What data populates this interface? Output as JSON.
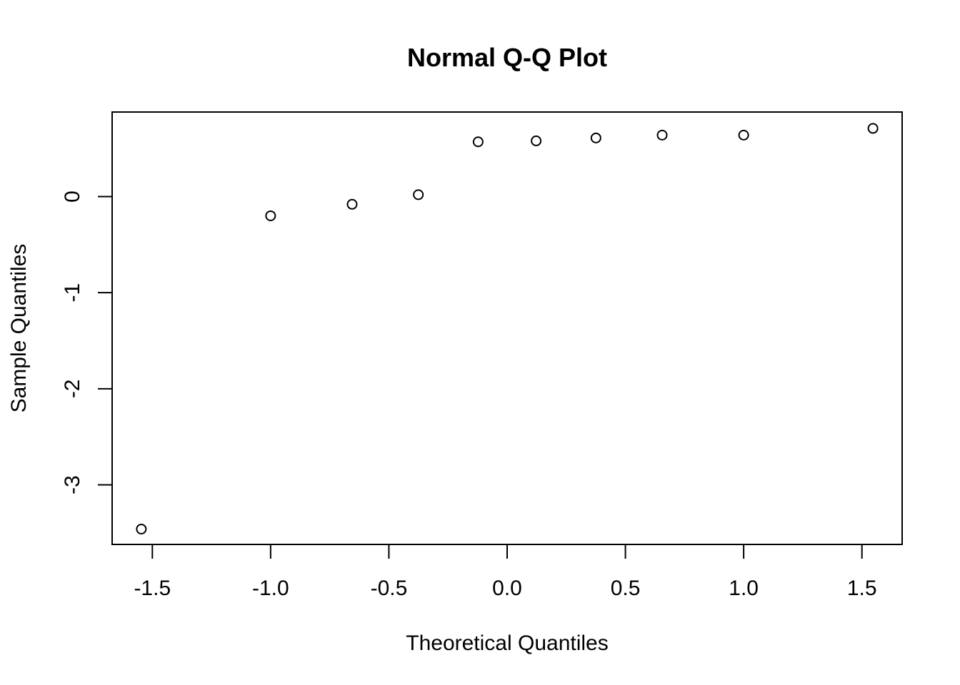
{
  "chart_data": {
    "type": "scatter",
    "title": "Normal Q-Q Plot",
    "xlabel": "Theoretical Quantiles",
    "ylabel": "Sample Quantiles",
    "xlim": [
      -1.67,
      1.67
    ],
    "ylim": [
      -3.62,
      0.88
    ],
    "xticks": [
      -1.5,
      -1.0,
      -0.5,
      0.0,
      0.5,
      1.0,
      1.5
    ],
    "xtick_labels": [
      "-1.5",
      "-1.0",
      "-0.5",
      "0.0",
      "0.5",
      "1.0",
      "1.5"
    ],
    "yticks": [
      -3,
      -2,
      -1,
      0
    ],
    "ytick_labels": [
      "-3",
      "-2",
      "-1",
      "0"
    ],
    "grid": false,
    "legend": "none",
    "marker": "open-circle",
    "series": [
      {
        "x": [
          -1.5466,
          -1.0,
          -0.6554,
          -0.3755,
          -0.1226,
          0.1226,
          0.3755,
          0.6554,
          1.0,
          1.5466
        ],
        "y": [
          -3.46,
          -0.2,
          -0.08,
          0.02,
          0.57,
          0.58,
          0.61,
          0.64,
          0.64,
          0.71
        ]
      }
    ]
  }
}
